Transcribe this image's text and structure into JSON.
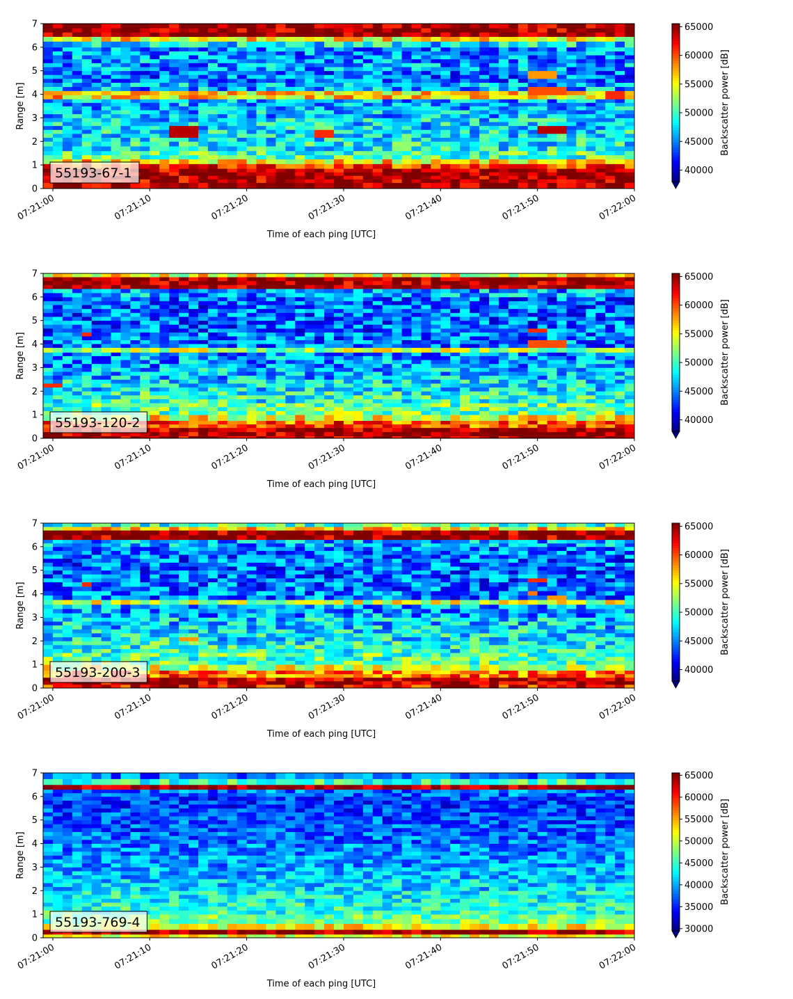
{
  "chart_data": [
    {
      "type": "heatmap",
      "id": "55193-67-1",
      "xlabel": "Time of each ping [UTC]",
      "ylabel": "Range [m]",
      "xticks": [
        "07:21:00",
        "07:21:10",
        "07:21:20",
        "07:21:30",
        "07:21:40",
        "07:21:50",
        "07:22:00"
      ],
      "yticks": [
        0,
        1,
        2,
        3,
        4,
        5,
        6,
        7
      ],
      "xlim": [
        "07:20:59",
        "07:22:00"
      ],
      "ylim": [
        0,
        7
      ],
      "colorbar": {
        "label": "Backscatter power [dB]",
        "range": [
          38000,
          65535
        ],
        "ticks": [
          40000,
          45000,
          50000,
          55000,
          60000,
          65000
        ],
        "extend": "min",
        "colormap": "jet"
      },
      "rows": [
        {
          "range": [
            0.0,
            0.25
          ],
          "value": 65000
        },
        {
          "range": [
            0.25,
            0.85
          ],
          "value": 64500
        },
        {
          "range": [
            0.85,
            1.05
          ],
          "value": 61000
        },
        {
          "range": [
            1.05,
            1.25
          ],
          "value": 56000
        },
        {
          "range": [
            1.25,
            1.6
          ],
          "value": 50500
        },
        {
          "range": [
            1.6,
            2.0
          ],
          "value": 48500
        },
        {
          "range": [
            2.0,
            2.5
          ],
          "value": 48000
        },
        {
          "range": [
            2.5,
            3.0
          ],
          "value": 47500
        },
        {
          "range": [
            3.0,
            3.5
          ],
          "value": 46500
        },
        {
          "range": [
            3.5,
            3.8
          ],
          "value": 46000
        },
        {
          "range": [
            3.8,
            4.15
          ],
          "value": 56000
        },
        {
          "range": [
            4.15,
            4.5
          ],
          "value": 46000
        },
        {
          "range": [
            4.5,
            5.0
          ],
          "value": 44500
        },
        {
          "range": [
            5.0,
            5.5
          ],
          "value": 45500
        },
        {
          "range": [
            5.5,
            6.0
          ],
          "value": 45000
        },
        {
          "range": [
            6.0,
            6.25
          ],
          "value": 47500
        },
        {
          "range": [
            6.25,
            6.45
          ],
          "value": 55000
        },
        {
          "range": [
            6.45,
            7.0
          ],
          "value": 65000
        }
      ],
      "features": [
        {
          "time": [
            "07:21:12",
            "07:21:15"
          ],
          "range": [
            2.2,
            2.65
          ],
          "value": 64000
        },
        {
          "time": [
            "07:21:27",
            "07:21:29"
          ],
          "range": [
            2.2,
            2.5
          ],
          "value": 61000
        },
        {
          "time": [
            "07:21:50",
            "07:21:53"
          ],
          "range": [
            2.4,
            2.7
          ],
          "value": 64000
        },
        {
          "time": [
            "07:21:49",
            "07:21:52"
          ],
          "range": [
            4.65,
            5.0
          ],
          "value": 58000
        },
        {
          "time": [
            "07:21:49",
            "07:21:53"
          ],
          "range": [
            4.0,
            4.4
          ],
          "value": 60000
        },
        {
          "time": [
            "07:21:57",
            "07:21:59"
          ],
          "range": [
            3.8,
            4.15
          ],
          "value": 61000
        }
      ]
    },
    {
      "type": "heatmap",
      "id": "55193-120-2",
      "xlabel": "Time of each ping [UTC]",
      "ylabel": "Range [m]",
      "xticks": [
        "07:21:00",
        "07:21:10",
        "07:21:20",
        "07:21:30",
        "07:21:40",
        "07:21:50",
        "07:22:00"
      ],
      "yticks": [
        0,
        1,
        2,
        3,
        4,
        5,
        6,
        7
      ],
      "xlim": [
        "07:20:59",
        "07:22:00"
      ],
      "ylim": [
        0,
        7
      ],
      "colorbar": {
        "label": "Backscatter power [dB]",
        "range": [
          38000,
          65535
        ],
        "ticks": [
          40000,
          45000,
          50000,
          55000,
          60000,
          65000
        ],
        "extend": "min",
        "colormap": "jet"
      },
      "rows": [
        {
          "range": [
            0.0,
            0.1
          ],
          "value": 65000
        },
        {
          "range": [
            0.1,
            0.45
          ],
          "value": 64500
        },
        {
          "range": [
            0.45,
            0.75
          ],
          "value": 60000
        },
        {
          "range": [
            0.75,
            1.0
          ],
          "value": 55000
        },
        {
          "range": [
            1.0,
            1.5
          ],
          "value": 51000
        },
        {
          "range": [
            1.5,
            2.0
          ],
          "value": 49000
        },
        {
          "range": [
            2.0,
            2.5
          ],
          "value": 47500
        },
        {
          "range": [
            2.5,
            3.0
          ],
          "value": 46500
        },
        {
          "range": [
            3.0,
            3.5
          ],
          "value": 45500
        },
        {
          "range": [
            3.5,
            3.65
          ],
          "value": 45000
        },
        {
          "range": [
            3.65,
            3.85
          ],
          "value": 53000
        },
        {
          "range": [
            3.85,
            4.5
          ],
          "value": 44500
        },
        {
          "range": [
            4.5,
            5.0
          ],
          "value": 44000
        },
        {
          "range": [
            5.0,
            5.5
          ],
          "value": 44000
        },
        {
          "range": [
            5.5,
            6.0
          ],
          "value": 44000
        },
        {
          "range": [
            6.0,
            6.35
          ],
          "value": 46000
        },
        {
          "range": [
            6.35,
            6.85
          ],
          "value": 65000
        },
        {
          "range": [
            6.85,
            7.0
          ],
          "value": 55000
        }
      ],
      "features": [
        {
          "time": [
            "07:20:59",
            "07:21:01"
          ],
          "range": [
            2.2,
            2.4
          ],
          "value": 61000
        },
        {
          "time": [
            "07:21:03",
            "07:21:04"
          ],
          "range": [
            4.35,
            4.55
          ],
          "value": 61000
        },
        {
          "time": [
            "07:21:49",
            "07:21:51"
          ],
          "range": [
            4.5,
            4.7
          ],
          "value": 61000
        },
        {
          "time": [
            "07:21:49",
            "07:21:53"
          ],
          "range": [
            3.85,
            4.1
          ],
          "value": 60000
        }
      ]
    },
    {
      "type": "heatmap",
      "id": "55193-200-3",
      "xlabel": "Time of each ping [UTC]",
      "ylabel": "Range [m]",
      "xticks": [
        "07:21:00",
        "07:21:10",
        "07:21:20",
        "07:21:30",
        "07:21:40",
        "07:21:50",
        "07:22:00"
      ],
      "yticks": [
        0,
        1,
        2,
        3,
        4,
        5,
        6,
        7
      ],
      "xlim": [
        "07:20:59",
        "07:22:00"
      ],
      "ylim": [
        0,
        7
      ],
      "colorbar": {
        "label": "Backscatter power [dB]",
        "range": [
          38000,
          65535
        ],
        "ticks": [
          40000,
          45000,
          50000,
          55000,
          60000,
          65000
        ],
        "extend": "min",
        "colormap": "jet"
      },
      "rows": [
        {
          "range": [
            0.0,
            0.15
          ],
          "value": 62000
        },
        {
          "range": [
            0.15,
            0.45
          ],
          "value": 64500
        },
        {
          "range": [
            0.45,
            0.75
          ],
          "value": 59000
        },
        {
          "range": [
            0.75,
            1.0
          ],
          "value": 54000
        },
        {
          "range": [
            1.0,
            1.5
          ],
          "value": 50500
        },
        {
          "range": [
            1.5,
            2.0
          ],
          "value": 49000
        },
        {
          "range": [
            2.0,
            2.5
          ],
          "value": 48000
        },
        {
          "range": [
            2.5,
            3.0
          ],
          "value": 47000
        },
        {
          "range": [
            3.0,
            3.55
          ],
          "value": 45500
        },
        {
          "range": [
            3.55,
            3.75
          ],
          "value": 54000
        },
        {
          "range": [
            3.75,
            4.5
          ],
          "value": 44500
        },
        {
          "range": [
            4.5,
            5.0
          ],
          "value": 44000
        },
        {
          "range": [
            5.0,
            5.5
          ],
          "value": 44000
        },
        {
          "range": [
            5.5,
            6.0
          ],
          "value": 44500
        },
        {
          "range": [
            6.0,
            6.3
          ],
          "value": 46000
        },
        {
          "range": [
            6.3,
            6.7
          ],
          "value": 65000
        },
        {
          "range": [
            6.7,
            6.85
          ],
          "value": 56000
        },
        {
          "range": [
            6.85,
            7.0
          ],
          "value": 50000
        }
      ],
      "features": [
        {
          "time": [
            "07:21:03",
            "07:21:04"
          ],
          "range": [
            4.35,
            4.55
          ],
          "value": 61000
        },
        {
          "time": [
            "07:21:13",
            "07:21:15"
          ],
          "range": [
            2.0,
            2.2
          ],
          "value": 58000
        },
        {
          "time": [
            "07:21:49",
            "07:21:51"
          ],
          "range": [
            4.5,
            4.7
          ],
          "value": 61000
        },
        {
          "time": [
            "07:21:49",
            "07:21:50"
          ],
          "range": [
            3.85,
            4.05
          ],
          "value": 59000
        },
        {
          "time": [
            "07:21:51",
            "07:21:53"
          ],
          "range": [
            3.8,
            4.0
          ],
          "value": 58000
        }
      ]
    },
    {
      "type": "heatmap",
      "id": "55193-769-4",
      "xlabel": "Time of each ping [UTC]",
      "ylabel": "Range [m]",
      "xticks": [
        "07:21:00",
        "07:21:10",
        "07:21:20",
        "07:21:30",
        "07:21:40",
        "07:21:50",
        "07:22:00"
      ],
      "yticks": [
        0,
        1,
        2,
        3,
        4,
        5,
        6,
        7
      ],
      "xlim": [
        "07:20:59",
        "07:22:00"
      ],
      "ylim": [
        0,
        7
      ],
      "colorbar": {
        "label": "Backscatter power [dB]",
        "range": [
          29500,
          65535
        ],
        "ticks": [
          30000,
          35000,
          40000,
          45000,
          50000,
          55000,
          60000,
          65000
        ],
        "extend": "min",
        "colormap": "jet"
      },
      "rows": [
        {
          "range": [
            0.0,
            0.15
          ],
          "value": 52000
        },
        {
          "range": [
            0.15,
            0.35
          ],
          "value": 64000
        },
        {
          "range": [
            0.35,
            0.6
          ],
          "value": 52000
        },
        {
          "range": [
            0.6,
            1.0
          ],
          "value": 47000
        },
        {
          "range": [
            1.0,
            1.5
          ],
          "value": 44500
        },
        {
          "range": [
            1.5,
            2.0
          ],
          "value": 43000
        },
        {
          "range": [
            2.0,
            2.5
          ],
          "value": 41500
        },
        {
          "range": [
            2.5,
            3.0
          ],
          "value": 40500
        },
        {
          "range": [
            3.0,
            3.5
          ],
          "value": 39500
        },
        {
          "range": [
            3.5,
            4.0
          ],
          "value": 38500
        },
        {
          "range": [
            4.0,
            4.5
          ],
          "value": 37500
        },
        {
          "range": [
            4.5,
            5.0
          ],
          "value": 37000
        },
        {
          "range": [
            5.0,
            5.5
          ],
          "value": 36500
        },
        {
          "range": [
            5.5,
            6.0
          ],
          "value": 36000
        },
        {
          "range": [
            6.0,
            6.3
          ],
          "value": 38000
        },
        {
          "range": [
            6.3,
            6.5
          ],
          "value": 64000
        },
        {
          "range": [
            6.5,
            6.75
          ],
          "value": 45000
        },
        {
          "range": [
            6.75,
            7.0
          ],
          "value": 38000
        }
      ],
      "features": []
    }
  ]
}
